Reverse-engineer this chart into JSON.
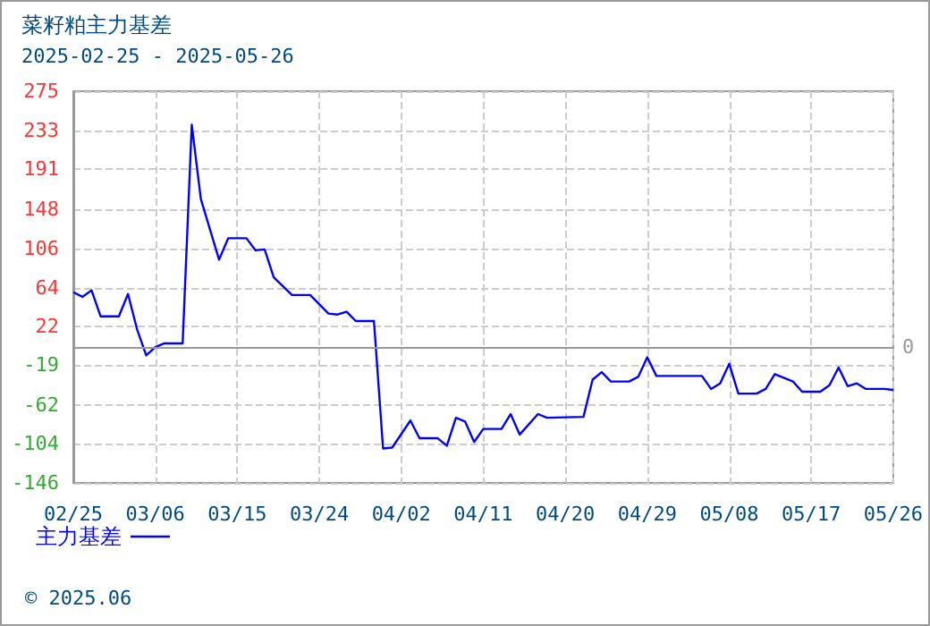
{
  "chart_data": {
    "type": "line",
    "title": "菜籽粕主力基差",
    "subtitle": "2025-02-25 - 2025-05-26",
    "x": [
      "2025-02-25",
      "2025-02-26",
      "2025-02-27",
      "2025-02-28",
      "2025-03-02",
      "2025-03-03",
      "2025-03-04",
      "2025-03-05",
      "2025-03-06",
      "2025-03-07",
      "2025-03-09",
      "2025-03-10",
      "2025-03-11",
      "2025-03-13",
      "2025-03-14",
      "2025-03-16",
      "2025-03-17",
      "2025-03-18",
      "2025-03-19",
      "2025-03-21",
      "2025-03-23",
      "2025-03-25",
      "2025-03-26",
      "2025-03-27",
      "2025-03-28",
      "2025-03-30",
      "2025-03-31",
      "2025-04-01",
      "2025-04-03",
      "2025-04-04",
      "2025-04-06",
      "2025-04-07",
      "2025-04-08",
      "2025-04-09",
      "2025-04-10",
      "2025-04-11",
      "2025-04-13",
      "2025-04-14",
      "2025-04-15",
      "2025-04-17",
      "2025-04-18",
      "2025-04-22",
      "2025-04-23",
      "2025-04-24",
      "2025-04-25",
      "2025-04-27",
      "2025-04-28",
      "2025-04-29",
      "2025-04-30",
      "2025-05-05",
      "2025-05-06",
      "2025-05-07",
      "2025-05-08",
      "2025-05-09",
      "2025-05-11",
      "2025-05-12",
      "2025-05-13",
      "2025-05-15",
      "2025-05-16",
      "2025-05-18",
      "2025-05-19",
      "2025-05-20",
      "2025-05-21",
      "2025-05-22",
      "2025-05-23",
      "2025-05-25",
      "2025-05-26"
    ],
    "series": [
      {
        "name": "主力基差",
        "color": "#0000ff",
        "values": [
          59,
          54,
          61,
          33,
          33,
          57,
          19,
          -9,
          0,
          4,
          4,
          239,
          159,
          94,
          117,
          117,
          104,
          105,
          75,
          56,
          56,
          36,
          35,
          38,
          28,
          28,
          -109,
          -108,
          -79,
          -98,
          -98,
          -106,
          -76,
          -80,
          -102,
          -88,
          -88,
          -72,
          -94,
          -72,
          -76,
          -75,
          -35,
          -27,
          -37,
          -37,
          -32,
          -11,
          -31,
          -31,
          -45,
          -39,
          -18,
          -50,
          -50,
          -45,
          -29,
          -37,
          -48,
          -48,
          -41,
          -22,
          -42,
          -39,
          -45,
          -45,
          -46
        ]
      }
    ],
    "xlim": [
      "2025-02-25",
      "2025-05-26"
    ],
    "xticks": [
      {
        "value": "2025-02-25",
        "label": "02/25"
      },
      {
        "value": "2025-03-06",
        "label": "03/06"
      },
      {
        "value": "2025-03-15",
        "label": "03/15"
      },
      {
        "value": "2025-03-24",
        "label": "03/24"
      },
      {
        "value": "2025-04-02",
        "label": "04/02"
      },
      {
        "value": "2025-04-11",
        "label": "04/11"
      },
      {
        "value": "2025-04-20",
        "label": "04/20"
      },
      {
        "value": "2025-04-29",
        "label": "04/29"
      },
      {
        "value": "2025-05-08",
        "label": "05/08"
      },
      {
        "value": "2025-05-17",
        "label": "05/17"
      },
      {
        "value": "2025-05-26",
        "label": "05/26"
      }
    ],
    "ylim": [
      -146,
      275
    ],
    "yticks": [
      -146,
      -104,
      -62,
      -19,
      22,
      64,
      106,
      148,
      191,
      233,
      275
    ],
    "ref_lines": [
      {
        "axis": "y",
        "value": 0,
        "label": "0",
        "color": "#999999"
      }
    ],
    "annotations": [
      "© 2025.06"
    ],
    "grid": true,
    "legend": "bottom left",
    "marker": "none",
    "line_style": "solid"
  }
}
